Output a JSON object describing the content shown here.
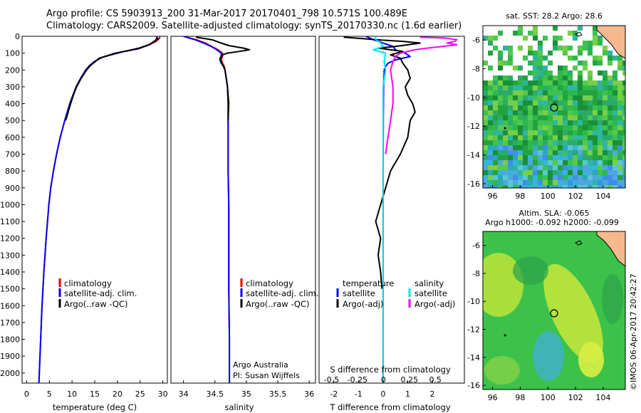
{
  "header": {
    "line1": "Argo profile: CS 5903913_200 31-Mar-2017 20170401_798 10.571S 100.489E",
    "line2": "Climatology: CARS2009. Satellite-adjusted climatology: synTS_20170330.nc (1.6d earlier)"
  },
  "colors": {
    "climatology": "#e00000",
    "satellite": "#0000ff",
    "argo": "#000000",
    "sat_salinity": "#00e5ee",
    "argo_salinity": "#ff00ff"
  },
  "depth_axis": {
    "ticks": [
      "0",
      "100",
      "200",
      "300",
      "400",
      "500",
      "600",
      "700",
      "800",
      "900",
      "1000",
      "1100",
      "1200",
      "1300",
      "1400",
      "1500",
      "1600",
      "1700",
      "1800",
      "1900",
      "2000"
    ],
    "range": [
      0,
      2060
    ]
  },
  "chart_data": [
    {
      "type": "line",
      "xlabel": "temperature (deg C)",
      "xlim": [
        -1,
        31
      ],
      "xticks": [
        "0",
        "5",
        "10",
        "15",
        "20",
        "25",
        "30"
      ],
      "legend": [
        "climatology",
        "satellite-adj. clim.",
        "Argo(..raw -QC)"
      ],
      "series": [
        {
          "name": "climatology",
          "color": "#e00000",
          "depth": [
            0,
            10,
            30,
            50,
            75,
            100,
            125,
            150,
            175,
            200,
            250,
            300,
            400,
            500,
            600,
            700,
            800,
            900,
            1000,
            1200,
            1400,
            1600,
            1800,
            2000,
            2060
          ],
          "values": [
            29.3,
            29.3,
            28.5,
            27.0,
            24.6,
            19.5,
            16.6,
            14.9,
            13.8,
            13.0,
            11.9,
            10.9,
            9.5,
            8.4,
            7.4,
            6.6,
            5.9,
            5.3,
            4.9,
            4.3,
            3.8,
            3.4,
            3.1,
            2.8,
            2.7
          ]
        },
        {
          "name": "satellite-adj. clim.",
          "color": "#0000ff",
          "depth": [
            0,
            10,
            30,
            50,
            75,
            100,
            125,
            150,
            175,
            200,
            250,
            300,
            400,
            500,
            600,
            700,
            800,
            900,
            1000,
            1200,
            1400,
            1600,
            1800,
            2000,
            2060
          ],
          "values": [
            28.6,
            28.7,
            28.2,
            27.0,
            24.4,
            19.6,
            16.6,
            14.9,
            13.8,
            13.0,
            11.9,
            10.9,
            9.5,
            8.4,
            7.4,
            6.6,
            5.9,
            5.3,
            4.9,
            4.3,
            3.8,
            3.4,
            3.1,
            2.8,
            2.7
          ]
        },
        {
          "name": "Argo(..raw -QC)",
          "color": "#000000",
          "depth": [
            5,
            15,
            30,
            50,
            70,
            90,
            110,
            130,
            150,
            175,
            200,
            250,
            300,
            350,
            400,
            500
          ],
          "values": [
            28.6,
            29.0,
            28.1,
            26.9,
            24.8,
            21.4,
            18.6,
            16.0,
            15.1,
            14.0,
            13.2,
            12.0,
            11.0,
            10.3,
            9.7,
            8.6
          ]
        }
      ]
    },
    {
      "type": "line",
      "xlabel": "salinity",
      "xlim": [
        33.8,
        36.1
      ],
      "xticks": [
        "34",
        "34.5",
        "35",
        "35.5",
        "36"
      ],
      "legend": [
        "climatology",
        "satellite-adj. clim.",
        "Argo(..raw -QC)"
      ],
      "annotation": [
        "Argo Australia",
        "PI: Susan Wijffels"
      ],
      "series": [
        {
          "name": "climatology",
          "color": "#e00000",
          "depth": [
            0,
            20,
            40,
            60,
            80,
            100,
            120,
            140,
            160,
            180,
            200,
            250,
            300,
            400,
            500,
            600,
            800,
            1000,
            1200,
            1500,
            1800,
            2060
          ],
          "values": [
            34.0,
            34.2,
            34.35,
            34.45,
            34.55,
            34.62,
            34.62,
            34.6,
            34.62,
            34.65,
            34.66,
            34.68,
            34.7,
            34.71,
            34.71,
            34.71,
            34.71,
            34.72,
            34.72,
            34.72,
            34.73,
            34.73
          ]
        },
        {
          "name": "satellite-adj. clim.",
          "color": "#0000ff",
          "depth": [
            0,
            20,
            40,
            60,
            80,
            100,
            120,
            140,
            160,
            180,
            200,
            250,
            300,
            400,
            500,
            600,
            800,
            1000,
            1200,
            1500,
            1800,
            2060
          ],
          "values": [
            34.0,
            34.18,
            34.32,
            34.44,
            34.53,
            34.6,
            34.6,
            34.58,
            34.6,
            34.64,
            34.66,
            34.68,
            34.7,
            34.71,
            34.71,
            34.71,
            34.71,
            34.72,
            34.72,
            34.72,
            34.73,
            34.73
          ]
        },
        {
          "name": "Argo(..raw -QC)",
          "color": "#000000",
          "depth": [
            5,
            20,
            40,
            55,
            70,
            80,
            90,
            100,
            110,
            130,
            150,
            175,
            200,
            250,
            300,
            350,
            400,
            500
          ],
          "values": [
            34.2,
            34.45,
            34.6,
            34.72,
            34.95,
            35.05,
            34.88,
            34.7,
            34.62,
            34.58,
            34.6,
            34.63,
            34.66,
            34.68,
            34.7,
            34.71,
            34.72,
            34.71
          ]
        }
      ]
    },
    {
      "type": "line",
      "xlabel": "T difference from climatology",
      "xlabel_top": "S difference from climatology",
      "xlim": [
        -2.6,
        3.3
      ],
      "xticks": [
        "-2",
        "-1",
        "0",
        "1",
        "2"
      ],
      "xticks_top": [
        "-0.5",
        "-0.25",
        "0",
        "0.25",
        "0.5"
      ],
      "legend_left": [
        "temperature",
        "satellite",
        "Argo(-adj)"
      ],
      "legend_right": [
        "salinity",
        "satellite",
        "Argo(-adj)"
      ],
      "series": [
        {
          "name": "temperature satellite",
          "color": "#0000ff",
          "depth": [
            0,
            20,
            40,
            60,
            80,
            100,
            120,
            140,
            160,
            180,
            200,
            300,
            500,
            800,
            1200,
            1600,
            2060
          ],
          "values": [
            -0.7,
            -0.4,
            0.0,
            0.4,
            0.5,
            0.9,
            1.1,
            0.5,
            0.2,
            0.1,
            0.05,
            0.02,
            0.01,
            0.0,
            0.0,
            0.0,
            0.0
          ]
        },
        {
          "name": "temperature Argo(-adj)",
          "color": "#000000",
          "depth": [
            5,
            20,
            30,
            40,
            60,
            70,
            90,
            110,
            130,
            160,
            200,
            250,
            300,
            350,
            400,
            450,
            500,
            600,
            700,
            800,
            900,
            1000,
            1100,
            1200,
            1300,
            1400,
            1500
          ],
          "values": [
            -1.6,
            -0.3,
            0.8,
            1.5,
            0.5,
            -0.2,
            0.8,
            0.3,
            0.7,
            0.8,
            1.0,
            1.1,
            0.9,
            1.0,
            1.2,
            1.3,
            1.1,
            1.0,
            0.7,
            0.3,
            0.1,
            -0.1,
            -0.3,
            -0.1,
            -0.2,
            -0.1,
            -0.05
          ]
        },
        {
          "name": "salinity satellite",
          "color": "#00e5ee",
          "depth": [
            0,
            20,
            40,
            60,
            80,
            100,
            150,
            200,
            300,
            500,
            800,
            1200,
            1600,
            2060
          ],
          "values": [
            -0.3,
            -0.3,
            -0.1,
            0.0,
            -0.4,
            0.1,
            0.05,
            0.1,
            0.0,
            0.0,
            0.0,
            0.0,
            0.0,
            0.0
          ]
        },
        {
          "name": "salinity Argo(-adj)",
          "color": "#ff00ff",
          "depth": [
            5,
            10,
            20,
            30,
            40,
            50,
            60,
            70,
            80,
            100,
            120,
            150,
            200,
            300,
            400,
            500,
            600,
            700
          ],
          "values": [
            1.5,
            2.5,
            3.0,
            2.9,
            2.6,
            3.0,
            2.4,
            1.8,
            1.3,
            0.7,
            0.5,
            0.4,
            0.3,
            0.4,
            0.4,
            0.3,
            0.2,
            0.1
          ]
        }
      ]
    }
  ],
  "map_sst": {
    "title": "sat. SST: 28.2  Argo: 28.6",
    "xticks": [
      "96",
      "98",
      "100",
      "102",
      "104"
    ],
    "yticks": [
      "-6",
      "-8",
      "-10",
      "-12",
      "-14",
      "-16"
    ]
  },
  "map_sla": {
    "title1": "Altim. SLA: -0.065",
    "title2": "Argo h1000: -0.092  h2000: -0.099",
    "xticks": [
      "96",
      "98",
      "100",
      "102",
      "104"
    ],
    "yticks": [
      "-6",
      "-8",
      "-10",
      "-12",
      "-14",
      "-16"
    ]
  },
  "footer_credit": "©IMOS 06-Apr-2017 20:42:27"
}
